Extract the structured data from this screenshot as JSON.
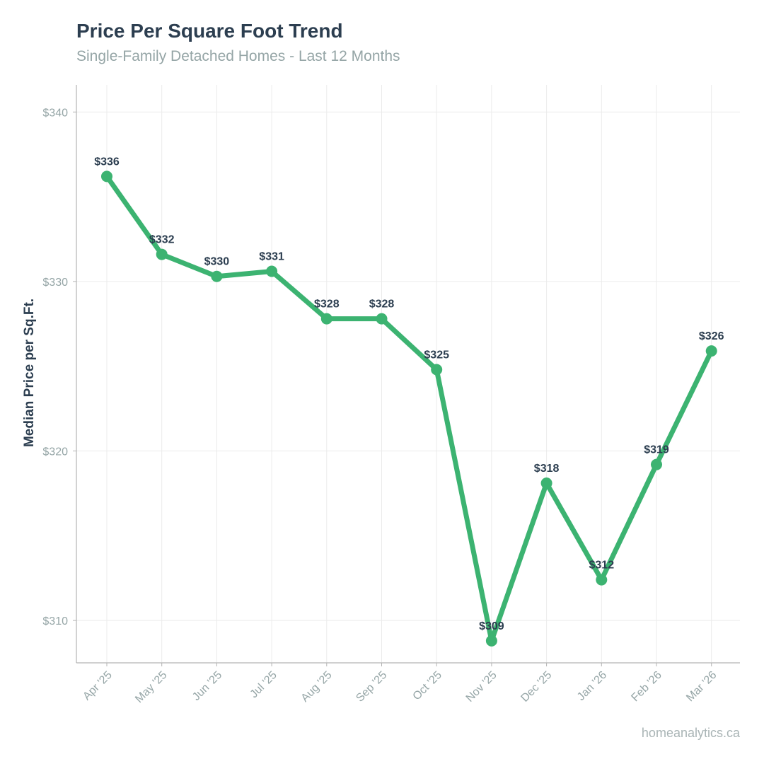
{
  "chart_data": {
    "type": "line",
    "title": "Price Per Square Foot Trend",
    "subtitle": "Single-Family Detached Homes - Last 12 Months",
    "xlabel": "",
    "ylabel": "Median Price per Sq.Ft.",
    "categories": [
      "Apr '25",
      "May '25",
      "Jun '25",
      "Jul '25",
      "Aug '25",
      "Sep '25",
      "Oct '25",
      "Nov '25",
      "Dec '25",
      "Jan '26",
      "Feb '26",
      "Mar '26"
    ],
    "series": [
      {
        "values": [
          336.2,
          331.6,
          330.3,
          330.6,
          327.8,
          327.8,
          324.8,
          308.8,
          318.1,
          312.4,
          319.2,
          325.9
        ],
        "labels": [
          "$336",
          "$332",
          "$330",
          "$331",
          "$328",
          "$328",
          "$325",
          "$309",
          "$318",
          "$312",
          "$319",
          "$326"
        ],
        "color": "#3cb371"
      }
    ],
    "y_ticks": [
      310,
      320,
      330,
      340
    ],
    "y_tick_labels": [
      "$310",
      "$320",
      "$330",
      "$340"
    ],
    "ylim": [
      307.5,
      341.6
    ],
    "grid": true,
    "legend": "none"
  },
  "source": "homeanalytics.ca"
}
